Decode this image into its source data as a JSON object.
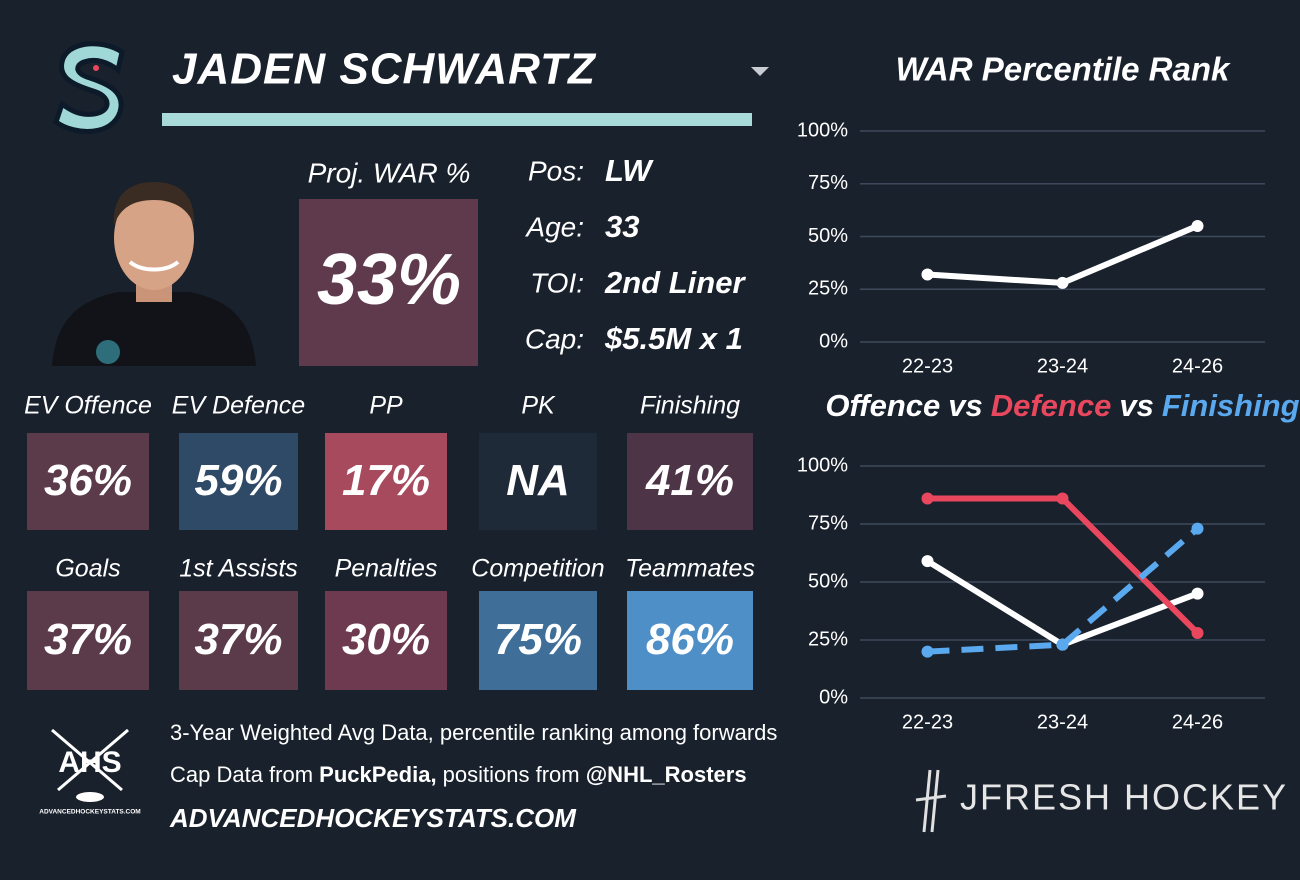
{
  "header": {
    "name": "JADEN SCHWARTZ"
  },
  "projection": {
    "label": "Proj. WAR %",
    "value": "33%",
    "color": "#5e3a4c"
  },
  "info": [
    {
      "label": "Pos:",
      "value": "LW"
    },
    {
      "label": "Age:",
      "value": "33"
    },
    {
      "label": "TOI:",
      "value": "2nd Liner"
    },
    {
      "label": "Cap:",
      "value": "$5.5M x 1"
    }
  ],
  "tiles": [
    {
      "label": "EV Offence",
      "value": "36%",
      "color": "#5b3a4a"
    },
    {
      "label": "EV Defence",
      "value": "59%",
      "color": "#2e4a66"
    },
    {
      "label": "PP",
      "value": "17%",
      "color": "#a84a5e"
    },
    {
      "label": "PK",
      "value": "NA",
      "color": "#1f2a38"
    },
    {
      "label": "Finishing",
      "value": "41%",
      "color": "#4e3447"
    },
    {
      "label": "Goals",
      "value": "37%",
      "color": "#5b3a4a"
    },
    {
      "label": "1st Assists",
      "value": "37%",
      "color": "#5b3a4a"
    },
    {
      "label": "Penalties",
      "value": "30%",
      "color": "#6e3a50"
    },
    {
      "label": "Competition",
      "value": "75%",
      "color": "#3f6e99"
    },
    {
      "label": "Teammates",
      "value": "86%",
      "color": "#4f8fc8"
    }
  ],
  "footer": {
    "lines": [
      [
        {
          "text": "3-Year Weighted Avg Data, percentile ranking among forwards",
          "bold": false
        }
      ],
      [
        {
          "text": "Cap Data from ",
          "bold": false
        },
        {
          "text": "PuckPedia,",
          "bold": true
        },
        {
          "text": " positions from ",
          "bold": false
        },
        {
          "text": "@NHL_Rosters",
          "bold": true
        }
      ]
    ],
    "website": "ADVANCEDHOCKEYSTATS.COM",
    "ahs_logo": {
      "text": "AHS",
      "subtext": "ADVANCEDHOCKEYSTATS.COM"
    },
    "brand": "JFRESH HOCKEY"
  },
  "chart_data": [
    {
      "type": "line",
      "title": "WAR Percentile Rank",
      "categories": [
        "22-23",
        "23-24",
        "24-26"
      ],
      "series": [
        {
          "color": "#ffffff",
          "values": [
            32,
            28,
            55
          ]
        }
      ],
      "ylim": [
        0,
        100
      ],
      "yticks": [
        {
          "value": 0,
          "label": "0%"
        },
        {
          "value": 25,
          "label": "25%"
        },
        {
          "value": 50,
          "label": "50%"
        },
        {
          "value": 75,
          "label": "75%"
        },
        {
          "value": 100,
          "label": "100%"
        }
      ],
      "grid": true
    },
    {
      "type": "line",
      "legend_separator": "vs",
      "categories": [
        "22-23",
        "23-24",
        "24-26"
      ],
      "series": [
        {
          "name": "Offence",
          "color": "#ffffff",
          "values": [
            59,
            23,
            45
          ]
        },
        {
          "name": "Defence",
          "color": "#e8475d",
          "values": [
            86,
            86,
            28
          ]
        },
        {
          "name": "Finishing",
          "color": "#5aa8ee",
          "values": [
            20,
            23,
            73
          ],
          "dashed": true
        }
      ],
      "ylim": [
        0,
        100
      ],
      "yticks": [
        {
          "value": 0,
          "label": "0%"
        },
        {
          "value": 25,
          "label": "25%"
        },
        {
          "value": 50,
          "label": "50%"
        },
        {
          "value": 75,
          "label": "75%"
        },
        {
          "value": 100,
          "label": "100%"
        }
      ],
      "grid": true
    }
  ]
}
